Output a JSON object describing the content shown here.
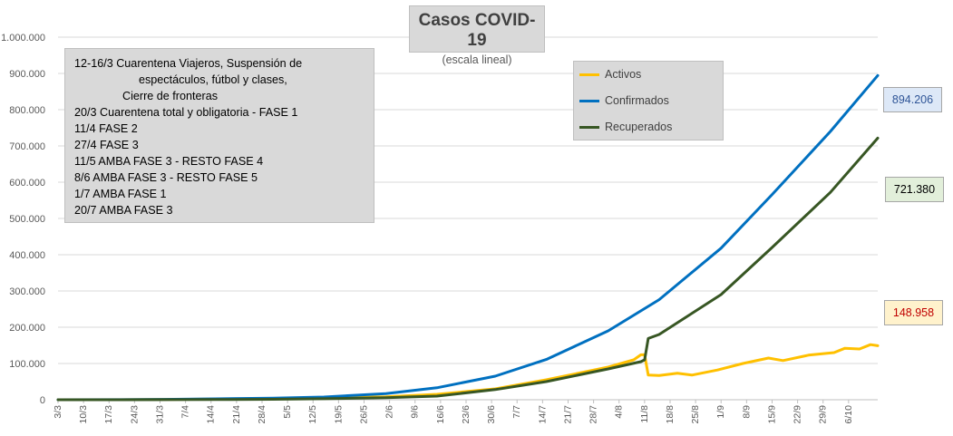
{
  "title": "Casos COVID-19",
  "subtitle": "(escala lineal)",
  "notes": [
    "12-16/3  Cuarentena Viajeros, Suspensión de",
    "espectáculos, fútbol y clases,",
    "Cierre de fronteras",
    "20/3 Cuarentena total y obligatoria - FASE 1",
    "11/4 FASE 2",
    "27/4 FASE 3",
    "11/5 AMBA FASE 3 - RESTO FASE 4",
    "8/6 AMBA FASE 3 - RESTO FASE 5",
    "1/7 AMBA FASE 1",
    "20/7 AMBA FASE 3"
  ],
  "legend": {
    "activos": "Activos",
    "confirmados": "Confirmados",
    "recuperados": "Recuperados"
  },
  "end_values": {
    "confirmados": "894.206",
    "recuperados": "721.380",
    "activos": "148.958"
  },
  "colors": {
    "activos": "#ffc000",
    "confirmados": "#0070c0",
    "recuperados": "#375623",
    "grid": "#d9d9d9",
    "axis_text": "#595959",
    "box_confirmados_text": "#2f5597",
    "box_recuperados_text": "#000000",
    "box_activos_text": "#c00000"
  },
  "chart_data": {
    "type": "line",
    "title": "Casos COVID-19",
    "subtitle": "(escala lineal)",
    "x_start": "2020-03-03",
    "x_end": "2020-10-12",
    "x_tick_labels": [
      "3/3",
      "10/3",
      "17/3",
      "24/3",
      "31/3",
      "7/4",
      "14/4",
      "21/4",
      "28/4",
      "5/5",
      "12/5",
      "19/5",
      "26/5",
      "2/6",
      "9/6",
      "16/6",
      "23/6",
      "30/6",
      "7/7",
      "14/7",
      "21/7",
      "28/7",
      "4/8",
      "11/8",
      "18/8",
      "25/8",
      "1/9",
      "8/9",
      "15/9",
      "22/9",
      "29/9",
      "6/10"
    ],
    "y_ticks": [
      "0",
      "100.000",
      "200.000",
      "300.000",
      "400.000",
      "500.000",
      "600.000",
      "700.000",
      "800.000",
      "900.000",
      "1.000.000"
    ],
    "ylim": [
      0,
      1000000
    ],
    "grid": true,
    "legend_position": "top-right",
    "series": [
      {
        "name": "Activos",
        "key": "activos",
        "points": [
          [
            "2020-03-03",
            1
          ],
          [
            "2020-03-20",
            100
          ],
          [
            "2020-04-01",
            800
          ],
          [
            "2020-04-15",
            1800
          ],
          [
            "2020-05-01",
            3000
          ],
          [
            "2020-05-15",
            4500
          ],
          [
            "2020-06-01",
            8000
          ],
          [
            "2020-06-15",
            15000
          ],
          [
            "2020-07-01",
            30000
          ],
          [
            "2020-07-15",
            55000
          ],
          [
            "2020-08-01",
            90000
          ],
          [
            "2020-08-08",
            110000
          ],
          [
            "2020-08-10",
            124000
          ],
          [
            "2020-08-11",
            124000
          ],
          [
            "2020-08-12",
            68000
          ],
          [
            "2020-08-15",
            67000
          ],
          [
            "2020-08-20",
            73000
          ],
          [
            "2020-08-24",
            68000
          ],
          [
            "2020-08-31",
            82000
          ],
          [
            "2020-09-07",
            100000
          ],
          [
            "2020-09-14",
            115000
          ],
          [
            "2020-09-18",
            108000
          ],
          [
            "2020-09-25",
            123000
          ],
          [
            "2020-10-02",
            130000
          ],
          [
            "2020-10-05",
            142000
          ],
          [
            "2020-10-09",
            140000
          ],
          [
            "2020-10-12",
            152000
          ],
          [
            "2020-10-14",
            148958
          ]
        ]
      },
      {
        "name": "Confirmados",
        "key": "confirmados",
        "points": [
          [
            "2020-03-03",
            1
          ],
          [
            "2020-03-20",
            130
          ],
          [
            "2020-04-01",
            1100
          ],
          [
            "2020-04-15",
            2500
          ],
          [
            "2020-05-01",
            4500
          ],
          [
            "2020-05-15",
            7500
          ],
          [
            "2020-06-01",
            17000
          ],
          [
            "2020-06-15",
            33000
          ],
          [
            "2020-07-01",
            65000
          ],
          [
            "2020-07-15",
            111000
          ],
          [
            "2020-08-01",
            190000
          ],
          [
            "2020-08-15",
            276000
          ],
          [
            "2020-09-01",
            418000
          ],
          [
            "2020-09-15",
            566000
          ],
          [
            "2020-10-01",
            740000
          ],
          [
            "2020-10-14",
            894206
          ]
        ]
      },
      {
        "name": "Recuperados",
        "key": "recuperados",
        "points": [
          [
            "2020-03-03",
            0
          ],
          [
            "2020-03-20",
            20
          ],
          [
            "2020-04-01",
            200
          ],
          [
            "2020-04-15",
            600
          ],
          [
            "2020-05-01",
            1300
          ],
          [
            "2020-05-15",
            2800
          ],
          [
            "2020-06-01",
            5500
          ],
          [
            "2020-06-15",
            10000
          ],
          [
            "2020-07-01",
            28000
          ],
          [
            "2020-07-15",
            50000
          ],
          [
            "2020-08-01",
            85000
          ],
          [
            "2020-08-10",
            105000
          ],
          [
            "2020-08-11",
            110000
          ],
          [
            "2020-08-12",
            169000
          ],
          [
            "2020-08-15",
            180000
          ],
          [
            "2020-09-01",
            290000
          ],
          [
            "2020-09-15",
            420000
          ],
          [
            "2020-10-01",
            572000
          ],
          [
            "2020-10-14",
            721380
          ]
        ]
      }
    ]
  }
}
